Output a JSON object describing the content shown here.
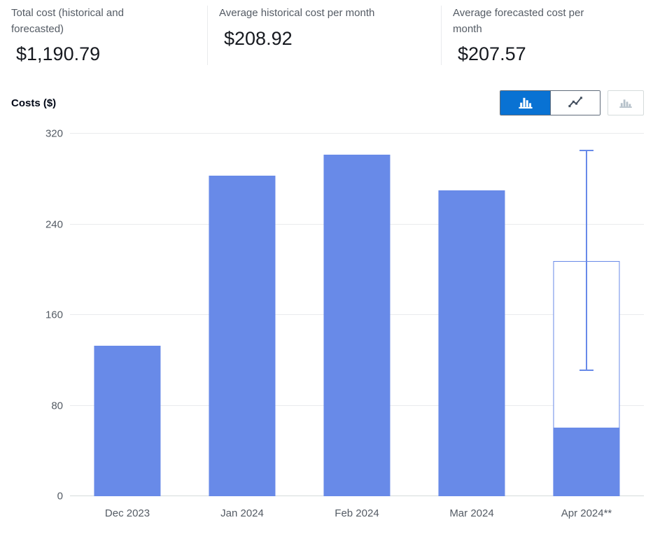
{
  "colors": {
    "accent": "#0972d3",
    "bar": "#688ae8",
    "gridline": "#e9ebed",
    "muted_text": "#545b64"
  },
  "stats": {
    "panels": [
      {
        "label": "Total cost (historical and forecasted)",
        "value": "$1,190.79"
      },
      {
        "label": "Average historical cost per month",
        "value": "$208.92"
      },
      {
        "label": "Average forecasted cost per month",
        "value": "$207.57"
      }
    ]
  },
  "toolbar": {
    "buttons": [
      {
        "name": "bar-chart",
        "state": "selected"
      },
      {
        "name": "line-chart",
        "state": "default"
      },
      {
        "name": "stacked-bar-chart",
        "state": "disabled"
      }
    ]
  },
  "chart_data": {
    "type": "bar",
    "title": "Costs ($)",
    "xlabel": "",
    "ylabel": "Costs ($)",
    "ylim": [
      0,
      320
    ],
    "yticks": [
      0,
      80,
      160,
      240,
      320
    ],
    "grid": true,
    "legend_position": "none",
    "categories": [
      "Dec 2023",
      "Jan 2024",
      "Feb 2024",
      "Mar 2024",
      "Apr 2024**"
    ],
    "bars": [
      {
        "label": "Dec 2023",
        "kind": "historical",
        "value": 133
      },
      {
        "label": "Jan 2024",
        "kind": "historical",
        "value": 283
      },
      {
        "label": "Feb 2024",
        "kind": "historical",
        "value": 302
      },
      {
        "label": "Mar 2024",
        "kind": "historical",
        "value": 270
      },
      {
        "label": "Apr 2024**",
        "kind": "forecast",
        "value": 208,
        "actual_to_date": 61,
        "confidence_interval": [
          111,
          306
        ]
      }
    ],
    "bar_color": "#688ae8"
  }
}
